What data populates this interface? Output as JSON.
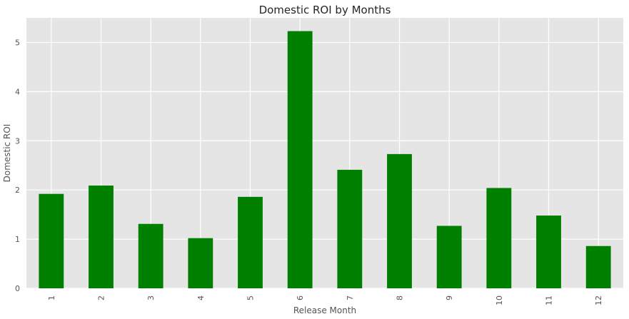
{
  "chart_data": {
    "type": "bar",
    "title": "Domestic ROI by Months",
    "xlabel": "Release Month",
    "ylabel": "Domestic ROI",
    "categories": [
      "1",
      "2",
      "3",
      "4",
      "5",
      "6",
      "7",
      "8",
      "9",
      "10",
      "11",
      "12"
    ],
    "values": [
      1.92,
      2.09,
      1.31,
      1.02,
      1.86,
      5.23,
      2.41,
      2.73,
      1.27,
      2.04,
      1.48,
      0.86
    ],
    "ylim": [
      0,
      5.5
    ],
    "yticks": [
      "0",
      "1",
      "2",
      "3",
      "4",
      "5"
    ],
    "bar_color": "#008000",
    "plot_background": "#e5e5e5",
    "grid_color": "#ffffff",
    "grid": true,
    "x_tick_rotation": "vertical"
  }
}
